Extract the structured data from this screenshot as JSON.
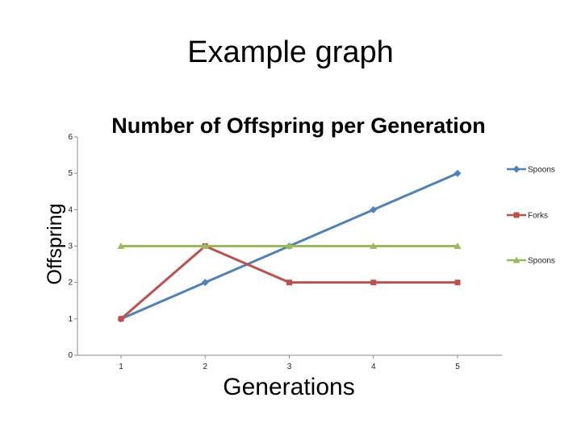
{
  "slide": {
    "title": "Example graph"
  },
  "chart_data": {
    "type": "line",
    "title": "Number of Offspring per Generation",
    "xlabel": "Generations",
    "ylabel": "Offspring",
    "x": [
      1,
      2,
      3,
      4,
      5
    ],
    "ylim": [
      0,
      6
    ],
    "yticks": [
      0,
      1,
      2,
      3,
      4,
      5,
      6
    ],
    "grid": false,
    "legend_position": "right",
    "series": [
      {
        "name": "Spoons",
        "values": [
          1,
          2,
          3,
          4,
          5
        ],
        "color": "#4F81BD",
        "marker": "diamond"
      },
      {
        "name": "Forks",
        "values": [
          1,
          3,
          2,
          2,
          2
        ],
        "color": "#C0504D",
        "marker": "square"
      },
      {
        "name": "Spoons",
        "values": [
          3,
          3,
          3,
          3,
          3
        ],
        "color": "#9BBB59",
        "marker": "triangle"
      }
    ]
  }
}
